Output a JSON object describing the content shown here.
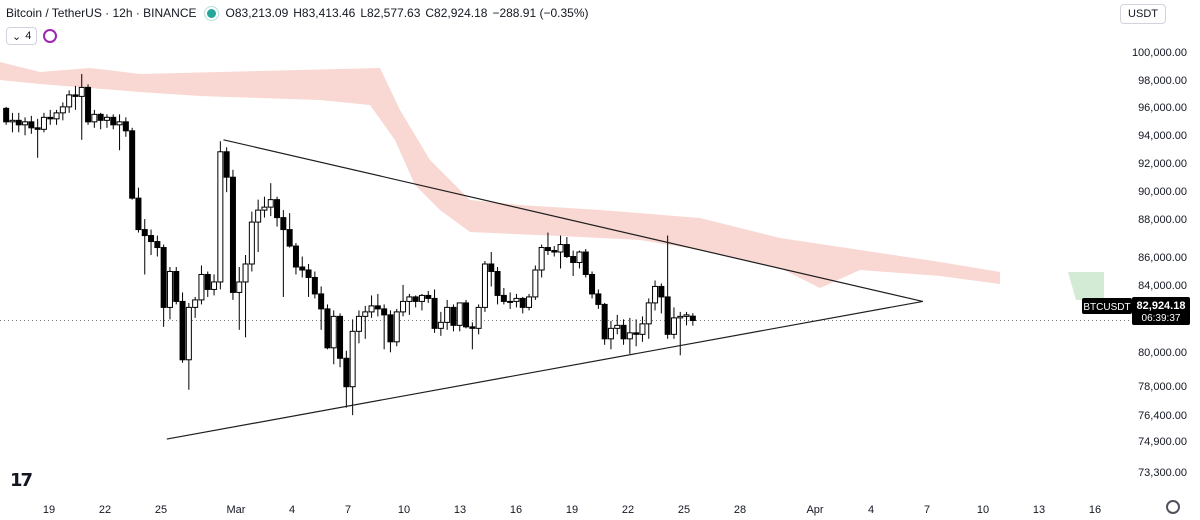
{
  "header": {
    "symbol": "Bitcoin / TetherUS · 12h · BINANCE",
    "open": "O83,213.09",
    "high": "H83,413.46",
    "low": "L82,577.63",
    "close": "C82,924.18",
    "change": "−288.91 (−0.35%)",
    "indicator_count": "4",
    "currency": "USDT"
  },
  "price_tag": {
    "symbol": "BTCUSDT",
    "price": "82,924.18",
    "countdown": "06:39:37"
  },
  "colors": {
    "bull_body": "#ffffff",
    "bear_body": "#000000",
    "candle_border": "#000000",
    "cloud": "#f7c9c3",
    "cloud_green": "#c8e6c9",
    "trendline": "#1e1e1e"
  },
  "chart_data": {
    "type": "candlestick",
    "timeframe": "12h",
    "y_ticks": [
      "100,000.00",
      "98,000.00",
      "96,000.00",
      "94,000.00",
      "92,000.00",
      "90,000.00",
      "88,000.00",
      "86,000.00",
      "84,000.00",
      "80,000.00",
      "78,000.00",
      "76,400.00",
      "74,900.00",
      "73,300.00"
    ],
    "x_ticks": [
      "19",
      "22",
      "25",
      "Mar",
      "4",
      "7",
      "10",
      "13",
      "16",
      "19",
      "22",
      "25",
      "28",
      "Apr",
      "4",
      "7",
      "10",
      "13",
      "16"
    ],
    "ylim": [
      72600,
      101000
    ],
    "candles": [
      {
        "o": 97100,
        "h": 97200,
        "l": 96000,
        "c": 96200
      },
      {
        "o": 96200,
        "h": 96800,
        "l": 95500,
        "c": 96300
      },
      {
        "o": 96300,
        "h": 96800,
        "l": 95500,
        "c": 96000
      },
      {
        "o": 96000,
        "h": 96500,
        "l": 95300,
        "c": 96200
      },
      {
        "o": 96200,
        "h": 96600,
        "l": 95400,
        "c": 95800
      },
      {
        "o": 95800,
        "h": 96400,
        "l": 93800,
        "c": 95700
      },
      {
        "o": 95700,
        "h": 96800,
        "l": 95500,
        "c": 96500
      },
      {
        "o": 96500,
        "h": 97000,
        "l": 96000,
        "c": 96400
      },
      {
        "o": 96400,
        "h": 97000,
        "l": 96000,
        "c": 96800
      },
      {
        "o": 96800,
        "h": 97500,
        "l": 96300,
        "c": 97200
      },
      {
        "o": 97200,
        "h": 98300,
        "l": 96800,
        "c": 98000
      },
      {
        "o": 98000,
        "h": 98600,
        "l": 97000,
        "c": 97900
      },
      {
        "o": 97900,
        "h": 99400,
        "l": 95000,
        "c": 98500
      },
      {
        "o": 98500,
        "h": 98700,
        "l": 96000,
        "c": 96200
      },
      {
        "o": 96200,
        "h": 97000,
        "l": 95800,
        "c": 96700
      },
      {
        "o": 96700,
        "h": 96800,
        "l": 95700,
        "c": 96300
      },
      {
        "o": 96300,
        "h": 96700,
        "l": 95800,
        "c": 96500
      },
      {
        "o": 96500,
        "h": 96700,
        "l": 95700,
        "c": 96000
      },
      {
        "o": 96000,
        "h": 96700,
        "l": 94300,
        "c": 96200
      },
      {
        "o": 96200,
        "h": 96500,
        "l": 95200,
        "c": 95600
      },
      {
        "o": 95600,
        "h": 95800,
        "l": 91000,
        "c": 91100
      },
      {
        "o": 91100,
        "h": 91800,
        "l": 88800,
        "c": 89000
      },
      {
        "o": 89000,
        "h": 89700,
        "l": 86000,
        "c": 88600
      },
      {
        "o": 88600,
        "h": 89000,
        "l": 87300,
        "c": 88200
      },
      {
        "o": 88200,
        "h": 88600,
        "l": 87200,
        "c": 87800
      },
      {
        "o": 87800,
        "h": 88000,
        "l": 82500,
        "c": 83800
      },
      {
        "o": 83800,
        "h": 86500,
        "l": 83000,
        "c": 86200
      },
      {
        "o": 86200,
        "h": 86500,
        "l": 84000,
        "c": 84200
      },
      {
        "o": 84200,
        "h": 84800,
        "l": 80100,
        "c": 80300
      },
      {
        "o": 80300,
        "h": 84100,
        "l": 78300,
        "c": 83800
      },
      {
        "o": 83800,
        "h": 84500,
        "l": 83100,
        "c": 84300
      },
      {
        "o": 84300,
        "h": 86600,
        "l": 84000,
        "c": 86000
      },
      {
        "o": 86000,
        "h": 86200,
        "l": 84500,
        "c": 85000
      },
      {
        "o": 85000,
        "h": 86000,
        "l": 84600,
        "c": 85500
      },
      {
        "o": 85500,
        "h": 94900,
        "l": 85000,
        "c": 94200
      },
      {
        "o": 94200,
        "h": 94500,
        "l": 91500,
        "c": 92500
      },
      {
        "o": 92500,
        "h": 93000,
        "l": 84300,
        "c": 84800
      },
      {
        "o": 84800,
        "h": 86500,
        "l": 82300,
        "c": 85500
      },
      {
        "o": 85500,
        "h": 87300,
        "l": 81800,
        "c": 86700
      },
      {
        "o": 86700,
        "h": 90200,
        "l": 86200,
        "c": 89500
      },
      {
        "o": 89500,
        "h": 91000,
        "l": 87500,
        "c": 90300
      },
      {
        "o": 90300,
        "h": 91200,
        "l": 89800,
        "c": 90500
      },
      {
        "o": 90500,
        "h": 92100,
        "l": 89900,
        "c": 91000
      },
      {
        "o": 91000,
        "h": 91200,
        "l": 89200,
        "c": 89800
      },
      {
        "o": 89800,
        "h": 90300,
        "l": 84500,
        "c": 89000
      },
      {
        "o": 89000,
        "h": 90100,
        "l": 87800,
        "c": 87900
      },
      {
        "o": 87900,
        "h": 88100,
        "l": 86000,
        "c": 86500
      },
      {
        "o": 86500,
        "h": 87200,
        "l": 85800,
        "c": 86300
      },
      {
        "o": 86300,
        "h": 86700,
        "l": 84500,
        "c": 85800
      },
      {
        "o": 85800,
        "h": 86200,
        "l": 84400,
        "c": 84700
      },
      {
        "o": 84700,
        "h": 85200,
        "l": 82300,
        "c": 83700
      },
      {
        "o": 83700,
        "h": 84000,
        "l": 81000,
        "c": 81100
      },
      {
        "o": 81100,
        "h": 83600,
        "l": 80000,
        "c": 83200
      },
      {
        "o": 83200,
        "h": 83400,
        "l": 79800,
        "c": 80400
      },
      {
        "o": 80400,
        "h": 80900,
        "l": 77100,
        "c": 78500
      },
      {
        "o": 78500,
        "h": 83000,
        "l": 76600,
        "c": 82200
      },
      {
        "o": 82200,
        "h": 83600,
        "l": 81400,
        "c": 83200
      },
      {
        "o": 83200,
        "h": 83900,
        "l": 81700,
        "c": 83500
      },
      {
        "o": 83500,
        "h": 84600,
        "l": 83100,
        "c": 83900
      },
      {
        "o": 83900,
        "h": 84700,
        "l": 83200,
        "c": 83700
      },
      {
        "o": 83700,
        "h": 84000,
        "l": 81000,
        "c": 83300
      },
      {
        "o": 83300,
        "h": 83600,
        "l": 80800,
        "c": 81500
      },
      {
        "o": 81500,
        "h": 83700,
        "l": 81200,
        "c": 83500
      },
      {
        "o": 83500,
        "h": 85300,
        "l": 83200,
        "c": 84200
      },
      {
        "o": 84200,
        "h": 84700,
        "l": 83300,
        "c": 84500
      },
      {
        "o": 84500,
        "h": 84600,
        "l": 83800,
        "c": 84200
      },
      {
        "o": 84200,
        "h": 84700,
        "l": 83600,
        "c": 84600
      },
      {
        "o": 84600,
        "h": 84900,
        "l": 84100,
        "c": 84400
      },
      {
        "o": 84400,
        "h": 85000,
        "l": 82100,
        "c": 82400
      },
      {
        "o": 82400,
        "h": 83500,
        "l": 81900,
        "c": 82800
      },
      {
        "o": 82800,
        "h": 84300,
        "l": 82300,
        "c": 83800
      },
      {
        "o": 83800,
        "h": 84000,
        "l": 82200,
        "c": 82600
      },
      {
        "o": 82600,
        "h": 84100,
        "l": 82200,
        "c": 84100
      },
      {
        "o": 84100,
        "h": 84300,
        "l": 82400,
        "c": 82500
      },
      {
        "o": 82500,
        "h": 82800,
        "l": 81000,
        "c": 82400
      },
      {
        "o": 82400,
        "h": 84000,
        "l": 82000,
        "c": 83800
      },
      {
        "o": 83800,
        "h": 86900,
        "l": 83500,
        "c": 86700
      },
      {
        "o": 86700,
        "h": 87500,
        "l": 85200,
        "c": 86200
      },
      {
        "o": 86200,
        "h": 86500,
        "l": 84000,
        "c": 84600
      },
      {
        "o": 84600,
        "h": 85100,
        "l": 84000,
        "c": 84200
      },
      {
        "o": 84200,
        "h": 84800,
        "l": 83700,
        "c": 84200
      },
      {
        "o": 84200,
        "h": 84700,
        "l": 83800,
        "c": 84400
      },
      {
        "o": 84400,
        "h": 84500,
        "l": 83400,
        "c": 83800
      },
      {
        "o": 83800,
        "h": 84700,
        "l": 83600,
        "c": 84500
      },
      {
        "o": 84500,
        "h": 86600,
        "l": 84300,
        "c": 86300
      },
      {
        "o": 86300,
        "h": 88000,
        "l": 85800,
        "c": 87800
      },
      {
        "o": 87800,
        "h": 88800,
        "l": 87300,
        "c": 87600
      },
      {
        "o": 87600,
        "h": 87900,
        "l": 87200,
        "c": 87500
      },
      {
        "o": 87500,
        "h": 88600,
        "l": 86400,
        "c": 88000
      },
      {
        "o": 88000,
        "h": 88500,
        "l": 87100,
        "c": 87200
      },
      {
        "o": 87200,
        "h": 87600,
        "l": 85900,
        "c": 86800
      },
      {
        "o": 86800,
        "h": 87600,
        "l": 86400,
        "c": 87500
      },
      {
        "o": 87500,
        "h": 87700,
        "l": 85800,
        "c": 86000
      },
      {
        "o": 86000,
        "h": 86200,
        "l": 84400,
        "c": 84700
      },
      {
        "o": 84700,
        "h": 85000,
        "l": 83700,
        "c": 84000
      },
      {
        "o": 84000,
        "h": 84100,
        "l": 81300,
        "c": 81700
      },
      {
        "o": 81700,
        "h": 82900,
        "l": 81000,
        "c": 82400
      },
      {
        "o": 82400,
        "h": 83300,
        "l": 82000,
        "c": 82600
      },
      {
        "o": 82600,
        "h": 83000,
        "l": 81300,
        "c": 81700
      },
      {
        "o": 81700,
        "h": 83100,
        "l": 80700,
        "c": 82100
      },
      {
        "o": 82100,
        "h": 83000,
        "l": 81200,
        "c": 82000
      },
      {
        "o": 82000,
        "h": 83200,
        "l": 81500,
        "c": 82700
      },
      {
        "o": 82700,
        "h": 84400,
        "l": 81700,
        "c": 84100
      },
      {
        "o": 84100,
        "h": 85600,
        "l": 83600,
        "c": 85200
      },
      {
        "o": 85200,
        "h": 85400,
        "l": 83400,
        "c": 84500
      },
      {
        "o": 84500,
        "h": 88600,
        "l": 81700,
        "c": 82000
      },
      {
        "o": 82000,
        "h": 83800,
        "l": 81700,
        "c": 83100
      },
      {
        "o": 83100,
        "h": 83500,
        "l": 80600,
        "c": 83200
      },
      {
        "o": 83200,
        "h": 83500,
        "l": 82600,
        "c": 83300
      },
      {
        "o": 83213.09,
        "h": 83413.46,
        "l": 82577.63,
        "c": 82924.18
      }
    ],
    "trendlines": [
      {
        "name": "upper",
        "from": {
          "bar": 35,
          "price": 95000
        },
        "to": {
          "bar": 146,
          "price": 84200
        }
      },
      {
        "name": "lower",
        "from": {
          "bar": 26,
          "price": 75000
        },
        "to": {
          "bar": 146,
          "price": 84200
        }
      }
    ],
    "last_price": 82924.18
  }
}
